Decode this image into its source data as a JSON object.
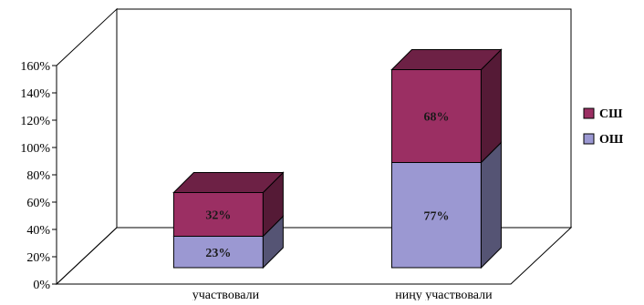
{
  "chart_data": {
    "type": "bar",
    "stacked": true,
    "three_d": true,
    "categories": [
      "участвовали",
      "ниңу участвовали"
    ],
    "series": [
      {
        "name": "ОШ",
        "values": [
          23,
          77
        ],
        "labels": [
          "23%",
          "77%"
        ],
        "color": "#9b98d2"
      },
      {
        "name": "СШ",
        "values": [
          32,
          68
        ],
        "labels": [
          "32%",
          "68%"
        ],
        "color": "#9b2f63"
      }
    ],
    "yticks": [
      "0%",
      "20%",
      "40%",
      "60%",
      "80%",
      "100%",
      "120%",
      "140%",
      "160%"
    ],
    "ylim": [
      0,
      160
    ],
    "grid": false,
    "legend_position": "right",
    "legend_order": [
      "СШ",
      "ОШ"
    ]
  }
}
